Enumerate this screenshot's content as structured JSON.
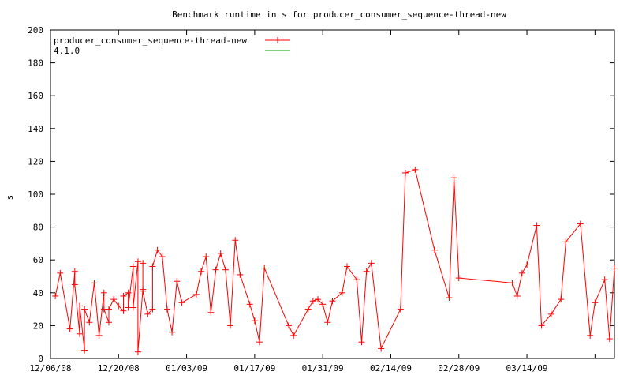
{
  "chart_data": {
    "type": "line",
    "title": "Benchmark runtime in s for producer_consumer_sequence-thread-new",
    "xlabel": "",
    "ylabel": "s",
    "x_axis": "date",
    "xlim": [
      "2008-12-06",
      "2009-04-01"
    ],
    "ylim": [
      0,
      200
    ],
    "y_ticks": [
      0,
      20,
      40,
      60,
      80,
      100,
      120,
      140,
      160,
      180,
      200
    ],
    "x_ticks": [
      {
        "date": "2008-12-06",
        "label": "12/06/08"
      },
      {
        "date": "2008-12-20",
        "label": "12/20/08"
      },
      {
        "date": "2009-01-03",
        "label": "01/03/09"
      },
      {
        "date": "2009-01-17",
        "label": "01/17/09"
      },
      {
        "date": "2009-01-31",
        "label": "01/31/09"
      },
      {
        "date": "2009-02-14",
        "label": "02/14/09"
      },
      {
        "date": "2009-02-28",
        "label": "02/28/09"
      },
      {
        "date": "2009-03-14",
        "label": "03/14/09"
      },
      {
        "date": "2009-03-28",
        "label": ""
      }
    ],
    "grid": false,
    "legend_position": "top-left",
    "series": [
      {
        "name": "producer_consumer_sequence-thread-new",
        "color": "#ff0000",
        "marker": "plus",
        "points": [
          [
            "2008-12-07",
            38
          ],
          [
            "2008-12-08",
            52
          ],
          [
            "2008-12-10",
            18
          ],
          [
            "2008-12-11",
            53
          ],
          [
            "2008-12-11",
            45
          ],
          [
            "2008-12-12",
            15
          ],
          [
            "2008-12-12",
            32
          ],
          [
            "2008-12-13",
            5
          ],
          [
            "2008-12-13",
            30
          ],
          [
            "2008-12-14",
            22
          ],
          [
            "2008-12-15",
            46
          ],
          [
            "2008-12-16",
            14
          ],
          [
            "2008-12-17",
            40
          ],
          [
            "2008-12-17",
            30
          ],
          [
            "2008-12-18",
            22
          ],
          [
            "2008-12-18",
            30
          ],
          [
            "2008-12-19",
            36
          ],
          [
            "2008-12-20",
            32
          ],
          [
            "2008-12-21",
            29
          ],
          [
            "2008-12-21",
            38
          ],
          [
            "2008-12-22",
            40
          ],
          [
            "2008-12-22",
            31
          ],
          [
            "2008-12-23",
            56
          ],
          [
            "2008-12-23",
            31
          ],
          [
            "2008-12-24",
            59
          ],
          [
            "2008-12-24",
            4
          ],
          [
            "2008-12-25",
            42
          ],
          [
            "2008-12-25",
            58
          ],
          [
            "2008-12-25",
            41
          ],
          [
            "2008-12-26",
            27
          ],
          [
            "2008-12-27",
            30
          ],
          [
            "2008-12-27",
            56
          ],
          [
            "2008-12-28",
            66
          ],
          [
            "2008-12-29",
            62
          ],
          [
            "2008-12-30",
            30
          ],
          [
            "2008-12-31",
            16
          ],
          [
            "2009-01-01",
            47
          ],
          [
            "2009-01-02",
            34
          ],
          [
            "2009-01-05",
            39
          ],
          [
            "2009-01-06",
            53
          ],
          [
            "2009-01-07",
            62
          ],
          [
            "2009-01-08",
            28
          ],
          [
            "2009-01-09",
            54
          ],
          [
            "2009-01-10",
            64
          ],
          [
            "2009-01-11",
            54
          ],
          [
            "2009-01-12",
            20
          ],
          [
            "2009-01-13",
            72
          ],
          [
            "2009-01-14",
            51
          ],
          [
            "2009-01-16",
            33
          ],
          [
            "2009-01-17",
            23
          ],
          [
            "2009-01-18",
            10
          ],
          [
            "2009-01-19",
            55
          ],
          [
            "2009-01-24",
            20
          ],
          [
            "2009-01-25",
            14
          ],
          [
            "2009-01-28",
            30
          ],
          [
            "2009-01-29",
            35
          ],
          [
            "2009-01-30",
            36
          ],
          [
            "2009-01-31",
            33
          ],
          [
            "2009-02-01",
            22
          ],
          [
            "2009-02-02",
            35
          ],
          [
            "2009-02-04",
            40
          ],
          [
            "2009-02-05",
            56
          ],
          [
            "2009-02-07",
            48
          ],
          [
            "2009-02-08",
            10
          ],
          [
            "2009-02-09",
            53
          ],
          [
            "2009-02-10",
            58
          ],
          [
            "2009-02-12",
            6
          ],
          [
            "2009-02-16",
            30
          ],
          [
            "2009-02-17",
            113
          ],
          [
            "2009-02-19",
            115
          ],
          [
            "2009-02-23",
            66
          ],
          [
            "2009-02-26",
            37
          ],
          [
            "2009-02-27",
            110
          ],
          [
            "2009-02-28",
            49
          ],
          [
            "2009-03-11",
            46
          ],
          [
            "2009-03-12",
            38
          ],
          [
            "2009-03-13",
            52
          ],
          [
            "2009-03-14",
            57
          ],
          [
            "2009-03-16",
            81
          ],
          [
            "2009-03-17",
            20
          ],
          [
            "2009-03-19",
            27
          ],
          [
            "2009-03-21",
            36
          ],
          [
            "2009-03-22",
            71
          ],
          [
            "2009-03-25",
            82
          ],
          [
            "2009-03-27",
            14
          ],
          [
            "2009-03-28",
            34
          ],
          [
            "2009-03-30",
            48
          ],
          [
            "2009-03-31",
            12
          ],
          [
            "2009-04-01",
            55
          ]
        ]
      },
      {
        "name": "4.1.0",
        "color": "#00a000",
        "marker": "none",
        "points": []
      }
    ]
  }
}
